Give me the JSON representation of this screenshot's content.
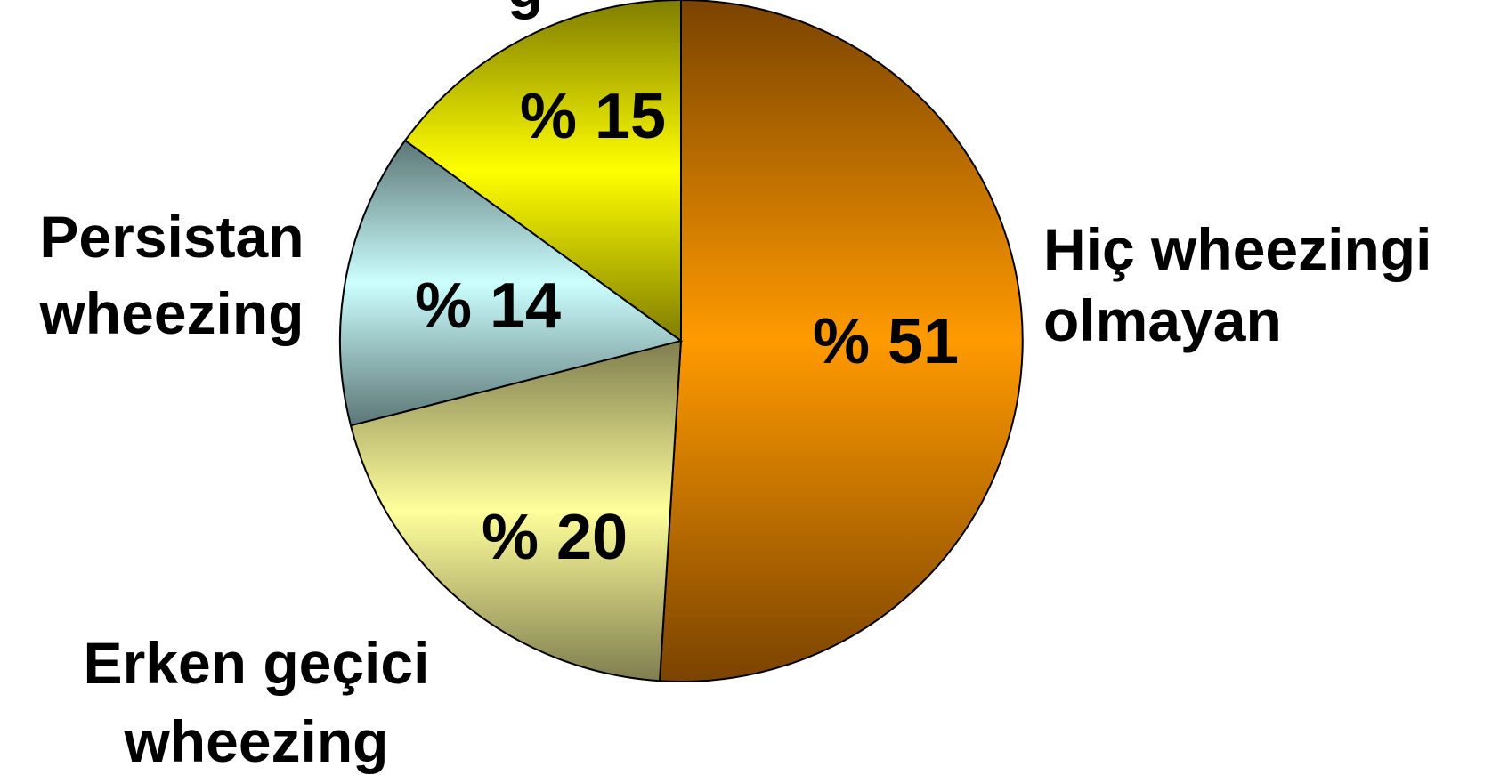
{
  "chart_data": {
    "type": "pie",
    "title": "",
    "slices": [
      {
        "label": "Hiç wheezingi olmayan",
        "label_lines": [
          "Hiç wheezingi",
          "olmayan"
        ],
        "value": 51,
        "value_label": "% 51",
        "color_dark": "#7a4300",
        "color_light": "#ff9a00"
      },
      {
        "label": "Erken geçici wheezing",
        "label_lines": [
          "Erken geçici",
          "wheezing"
        ],
        "value": 20,
        "value_label": "% 20",
        "color_dark": "#7f7d4e",
        "color_light": "#ffff9c"
      },
      {
        "label": "Persistan wheezing",
        "label_lines": [
          "Persistan",
          "wheezing"
        ],
        "value": 14,
        "value_label": "% 14",
        "color_dark": "#5c7676",
        "color_light": "#ccffff"
      },
      {
        "label": "",
        "label_lines": [
          "g"
        ],
        "value": 15,
        "value_label": "% 15",
        "color_dark": "#7f7d00",
        "color_light": "#ffff00"
      }
    ]
  }
}
